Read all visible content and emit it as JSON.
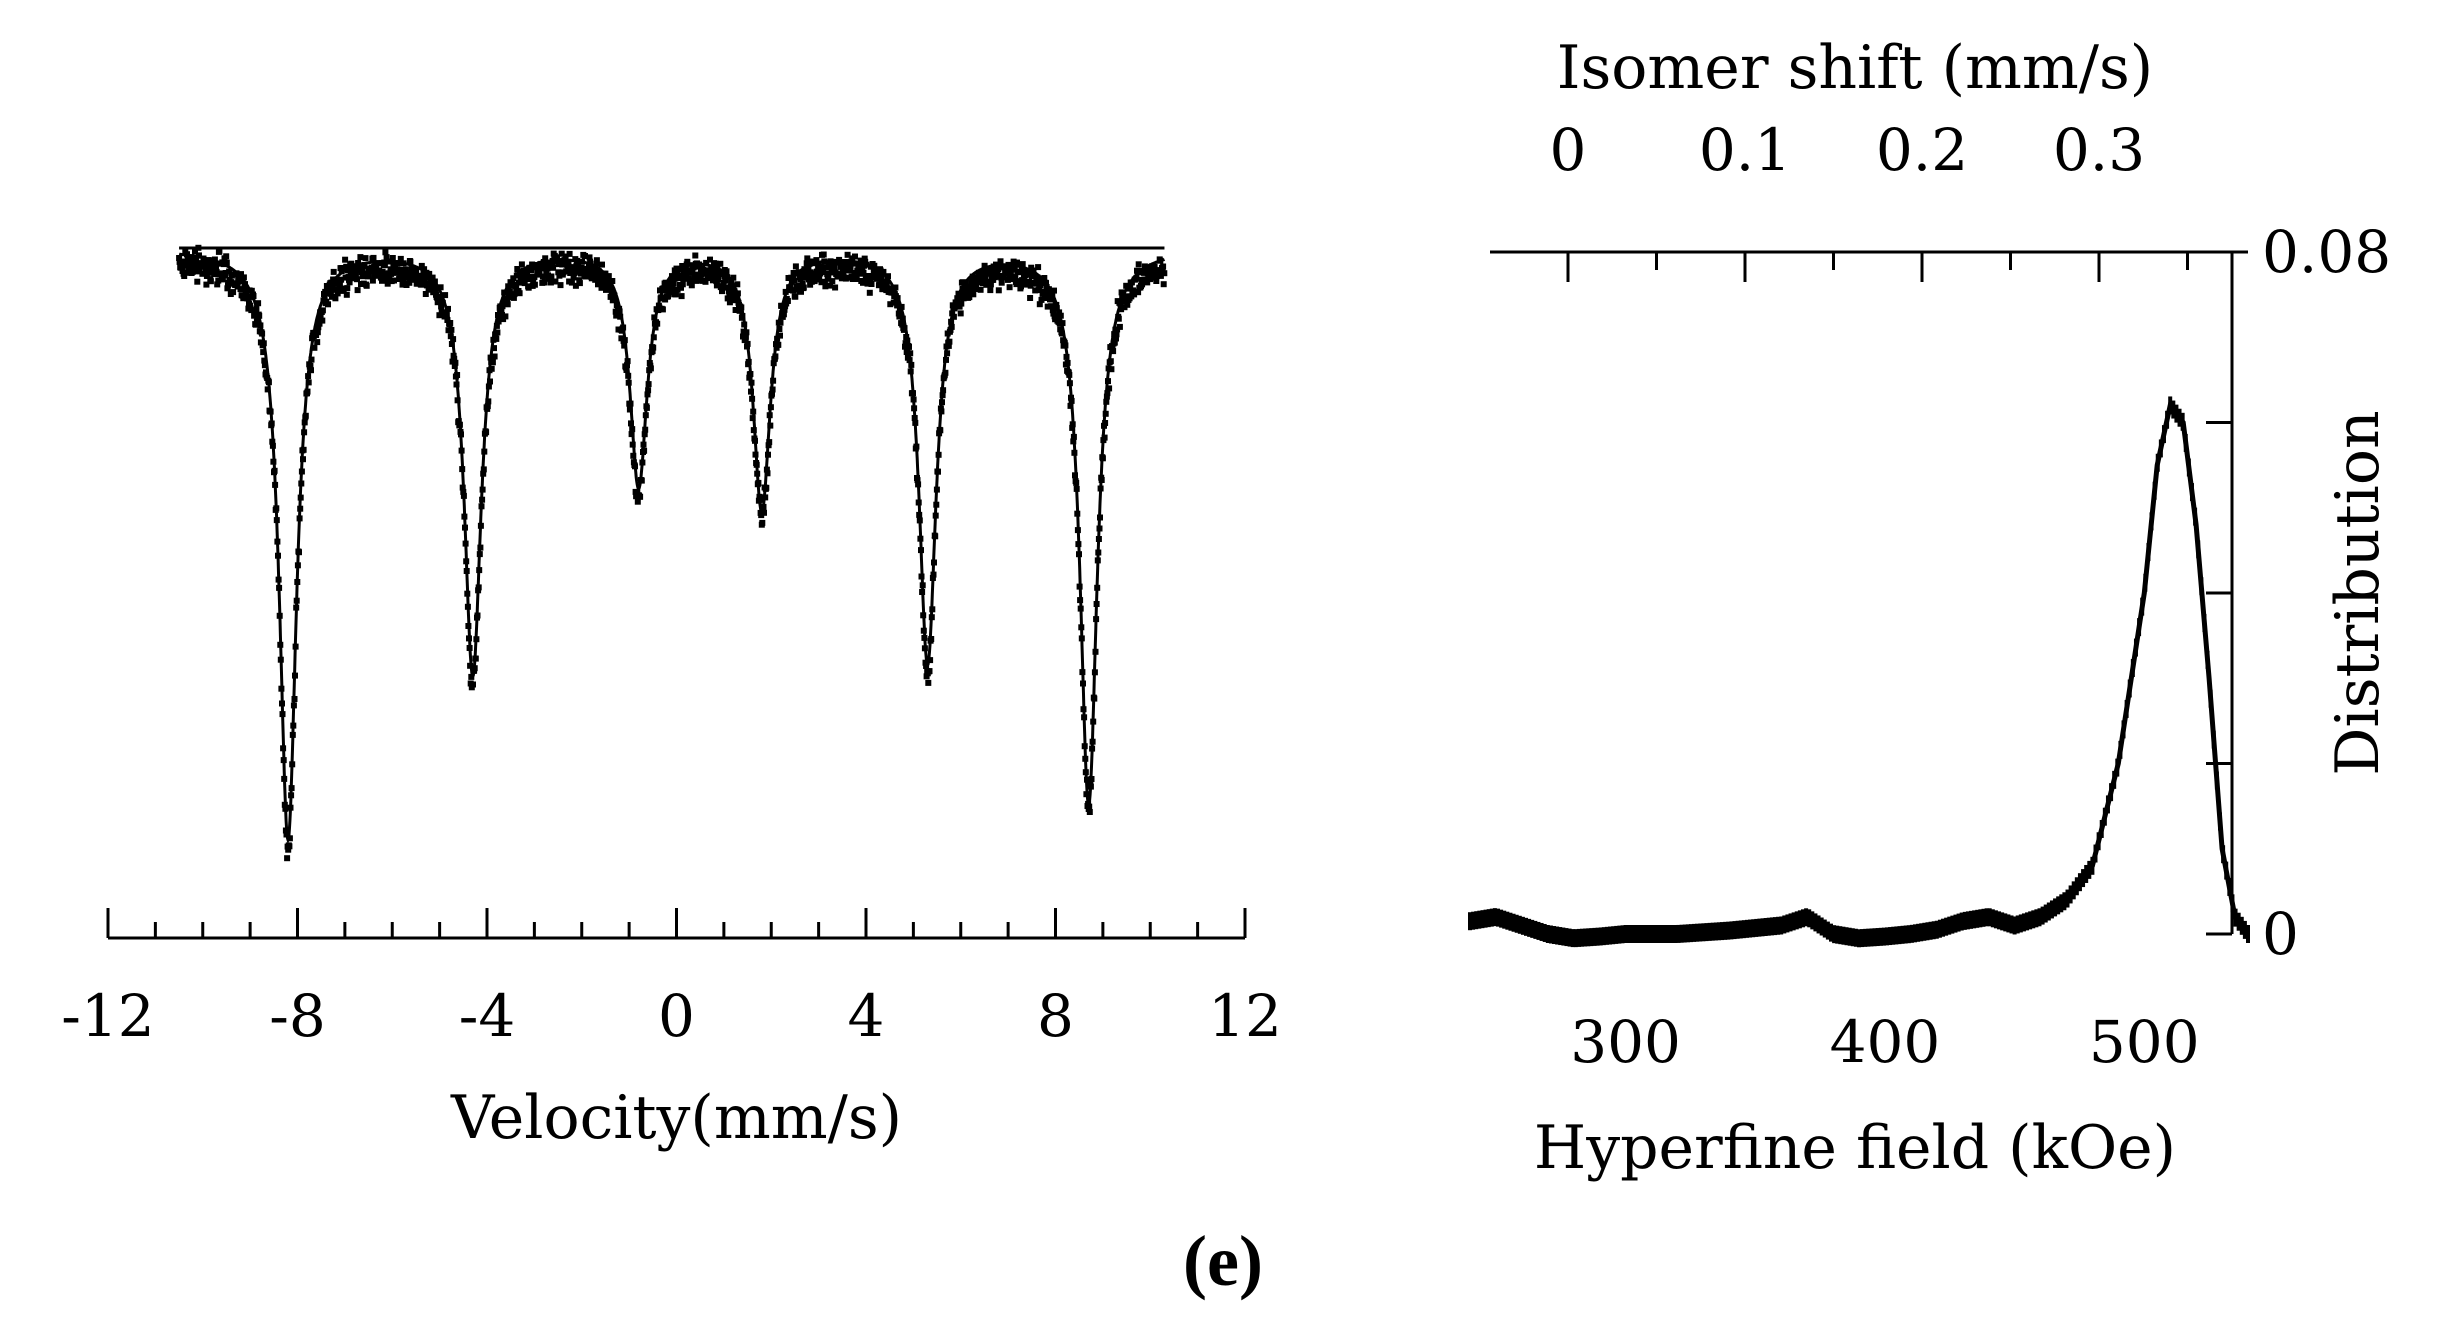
{
  "caption": "(e)",
  "chart_data": [
    {
      "type": "scatter",
      "xlabel": "Velocity(mm/s)",
      "ylabel": "",
      "xlim": [
        -12,
        12
      ],
      "xticks": [
        -12,
        -8,
        -4,
        0,
        4,
        8,
        12
      ],
      "xtick_labels": [
        "-12",
        "-8",
        "-4",
        "0",
        "4",
        "8",
        "12"
      ],
      "y_axis_shown": false,
      "baseline": 1.0,
      "sextet_lines": [
        {
          "velocity": -8.2,
          "relative_depth": 1.0
        },
        {
          "velocity": -4.3,
          "relative_depth": 0.72
        },
        {
          "velocity": -0.8,
          "relative_depth": 0.4
        },
        {
          "velocity": 1.8,
          "relative_depth": 0.44
        },
        {
          "velocity": 5.3,
          "relative_depth": 0.7
        },
        {
          "velocity": 8.7,
          "relative_depth": 0.94
        }
      ],
      "series": [
        {
          "style": "points",
          "x_range": [
            -10.5,
            10.3
          ]
        },
        {
          "style": "fit-line"
        }
      ]
    },
    {
      "type": "line",
      "xlabel": "Hyperfine field (kOe)",
      "ylabel": "Distribution",
      "top_xlabel": "Isomer shift (mm/s)",
      "xlim": [
        240,
        540
      ],
      "ylim": [
        0,
        0.08
      ],
      "xticks": [
        300,
        400,
        500
      ],
      "xtick_labels": [
        "300",
        "400",
        "500"
      ],
      "yticks": [
        0,
        0.08
      ],
      "ytick_labels": [
        "0",
        "0.08"
      ],
      "top_xticks": [
        0,
        0.1,
        0.2,
        0.3
      ],
      "top_xtick_labels": [
        "0",
        "0.1",
        "0.2",
        "0.3"
      ],
      "series": [
        {
          "x": [
            240,
            250,
            260,
            270,
            280,
            290,
            300,
            320,
            340,
            360,
            370,
            380,
            390,
            400,
            410,
            420,
            430,
            440,
            450,
            460,
            470,
            480,
            490,
            500,
            505,
            510,
            515,
            520,
            525,
            530,
            535,
            540
          ],
          "y": [
            0.0015,
            0.002,
            0.001,
            0.0,
            -0.0005,
            -0.0003,
            0.0,
            0.0,
            0.0004,
            0.001,
            0.002,
            0.0,
            -0.0005,
            -0.0003,
            0.0,
            0.0005,
            0.0015,
            0.002,
            0.001,
            0.002,
            0.004,
            0.008,
            0.02,
            0.04,
            0.055,
            0.062,
            0.06,
            0.048,
            0.03,
            0.01,
            0.002,
            0.0
          ]
        }
      ]
    }
  ]
}
